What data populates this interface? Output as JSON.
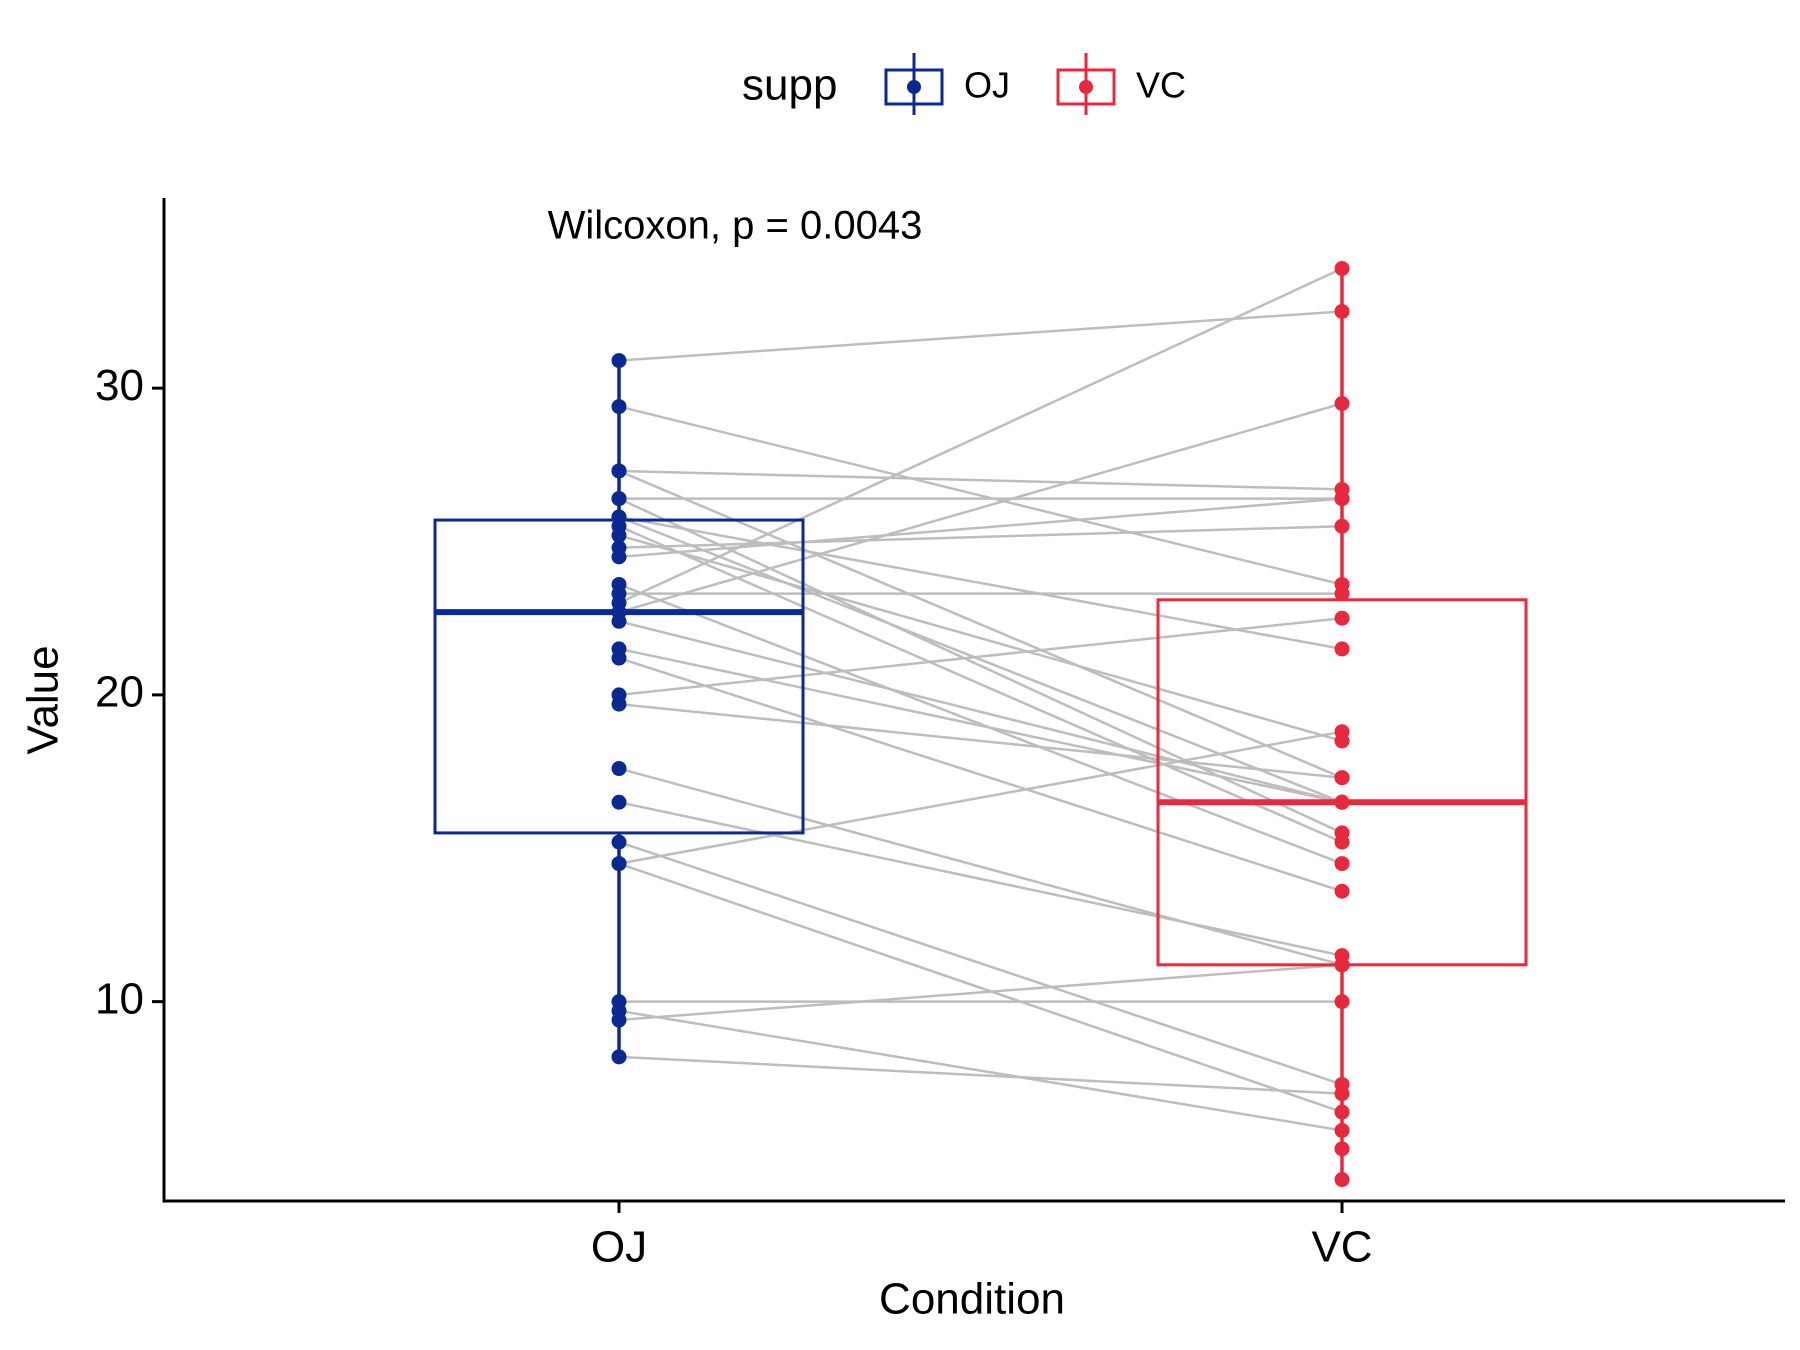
{
  "chart_data": {
    "type": "box",
    "title": "",
    "xlabel": "Condition",
    "ylabel": "Value",
    "categories": [
      "OJ",
      "VC"
    ],
    "ylim": [
      3.5,
      36.2
    ],
    "yticks": [
      10,
      20,
      30
    ],
    "grid": false,
    "annotation": "Wilcoxon, p = 0.0043",
    "legend": {
      "title": "supp",
      "position": "top",
      "items": [
        {
          "label": "OJ",
          "color": "#0A2A92"
        },
        {
          "label": "VC",
          "color": "#E8283C"
        }
      ]
    },
    "series": [
      {
        "name": "OJ",
        "color": "#0A2A92",
        "box": {
          "min": 8.2,
          "q1": 15.5,
          "median": 22.7,
          "q3": 25.7,
          "max": 30.9
        }
      },
      {
        "name": "VC",
        "color": "#E8283C",
        "box": {
          "min": 4.2,
          "q1": 11.2,
          "median": 16.5,
          "q3": 23.1,
          "max": 33.9
        }
      }
    ],
    "pairs": [
      {
        "oj": 30.9,
        "vc": 32.5
      },
      {
        "oj": 29.4,
        "vc": 23.6
      },
      {
        "oj": 27.3,
        "vc": 26.7
      },
      {
        "oj": 27.3,
        "vc": 17.3
      },
      {
        "oj": 26.4,
        "vc": 26.4
      },
      {
        "oj": 26.4,
        "vc": 15.5
      },
      {
        "oj": 25.8,
        "vc": 16.5
      },
      {
        "oj": 25.8,
        "vc": 21.5
      },
      {
        "oj": 25.5,
        "vc": 15.2
      },
      {
        "oj": 25.2,
        "vc": 18.5
      },
      {
        "oj": 24.8,
        "vc": 25.5
      },
      {
        "oj": 24.5,
        "vc": 26.4
      },
      {
        "oj": 23.6,
        "vc": 14.5
      },
      {
        "oj": 23.3,
        "vc": 23.3
      },
      {
        "oj": 23.0,
        "vc": 33.9
      },
      {
        "oj": 22.7,
        "vc": 29.5
      },
      {
        "oj": 22.4,
        "vc": 16.5
      },
      {
        "oj": 21.5,
        "vc": 16.5
      },
      {
        "oj": 21.2,
        "vc": 13.6
      },
      {
        "oj": 20.0,
        "vc": 22.5
      },
      {
        "oj": 19.7,
        "vc": 17.3
      },
      {
        "oj": 17.6,
        "vc": 11.2
      },
      {
        "oj": 16.5,
        "vc": 11.5
      },
      {
        "oj": 15.2,
        "vc": 7.3
      },
      {
        "oj": 14.5,
        "vc": 18.8
      },
      {
        "oj": 14.5,
        "vc": 6.4
      },
      {
        "oj": 10.0,
        "vc": 10.0
      },
      {
        "oj": 9.7,
        "vc": 5.8
      },
      {
        "oj": 9.4,
        "vc": 11.2
      },
      {
        "oj": 8.2,
        "vc": 7.0
      }
    ],
    "extra_points": {
      "vc": [
        5.2,
        4.2
      ]
    }
  }
}
